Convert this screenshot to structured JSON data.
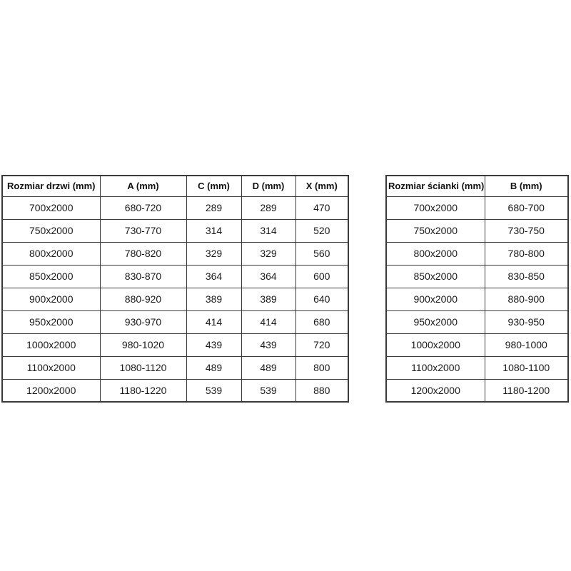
{
  "page": {
    "background_color": "#ffffff",
    "border_color": "#3a3a3a",
    "text_color": "#1a1a1a"
  },
  "chart_data": [
    {
      "type": "table",
      "title": "",
      "columns": [
        "Rozmiar drzwi (mm)",
        "A (mm)",
        "C (mm)",
        "D (mm)",
        "X (mm)"
      ],
      "rows": [
        [
          "700x2000",
          "680-720",
          "289",
          "289",
          "470"
        ],
        [
          "750x2000",
          "730-770",
          "314",
          "314",
          "520"
        ],
        [
          "800x2000",
          "780-820",
          "329",
          "329",
          "560"
        ],
        [
          "850x2000",
          "830-870",
          "364",
          "364",
          "600"
        ],
        [
          "900x2000",
          "880-920",
          "389",
          "389",
          "640"
        ],
        [
          "950x2000",
          "930-970",
          "414",
          "414",
          "680"
        ],
        [
          "1000x2000",
          "980-1020",
          "439",
          "439",
          "720"
        ],
        [
          "1100x2000",
          "1080-1120",
          "489",
          "489",
          "800"
        ],
        [
          "1200x2000",
          "1180-1220",
          "539",
          "539",
          "880"
        ]
      ],
      "layout": {
        "grid": true,
        "header_bold": true,
        "alignment": "center"
      }
    },
    {
      "type": "table",
      "title": "",
      "columns": [
        "Rozmiar ścianki (mm)",
        "B (mm)"
      ],
      "rows": [
        [
          "700x2000",
          "680-700"
        ],
        [
          "750x2000",
          "730-750"
        ],
        [
          "800x2000",
          "780-800"
        ],
        [
          "850x2000",
          "830-850"
        ],
        [
          "900x2000",
          "880-900"
        ],
        [
          "950x2000",
          "930-950"
        ],
        [
          "1000x2000",
          "980-1000"
        ],
        [
          "1100x2000",
          "1080-1100"
        ],
        [
          "1200x2000",
          "1180-1200"
        ]
      ],
      "layout": {
        "grid": true,
        "header_bold": true,
        "alignment": "center"
      }
    }
  ]
}
